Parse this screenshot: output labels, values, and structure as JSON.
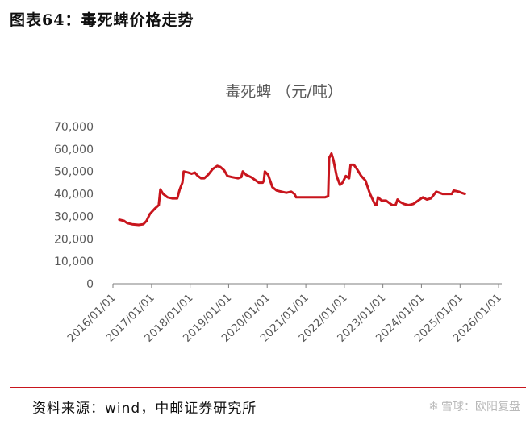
{
  "header": {
    "title": "图表64：毒死蜱价格走势"
  },
  "footer": {
    "source": "资料来源：wind，中邮证券研究所",
    "watermark": "雪球：欧阳复盘",
    "watermark_icon": "snowball-logo-icon"
  },
  "colors": {
    "rule": "#c8151d",
    "series": "#c8151d",
    "text": "#595959",
    "axis": "#7f7f7f"
  },
  "chart_data": {
    "type": "line",
    "title": "毒死蜱 （元/吨）",
    "xlabel": "",
    "ylabel": "",
    "ylim": [
      0,
      70000
    ],
    "yticks": [
      0,
      10000,
      20000,
      30000,
      40000,
      50000,
      60000,
      70000
    ],
    "ytick_labels": [
      "0",
      "10,000",
      "20,000",
      "30,000",
      "40,000",
      "50,000",
      "60,000",
      "70,000"
    ],
    "xlim": [
      "2016-01-01",
      "2026-01-31"
    ],
    "xticks": [
      "2016-01-01",
      "2017-01-01",
      "2018-01-01",
      "2019-01-01",
      "2020-01-01",
      "2021-01-01",
      "2022-01-01",
      "2023-01-01",
      "2024-01-01",
      "2025-01-01",
      "2026-01-01"
    ],
    "xtick_labels": [
      "2016/01/01",
      "2017/01/01",
      "2018/01/01",
      "2019/01/01",
      "2020/01/01",
      "2021/01/01",
      "2022/01/01",
      "2023/01/01",
      "2024/01/01",
      "2025/01/01",
      "2026/01/01"
    ],
    "grid": false,
    "legend": "none",
    "series": [
      {
        "color": "#c8151d",
        "points": [
          [
            "2016-03-01",
            28500
          ],
          [
            "2016-04-15",
            28000
          ],
          [
            "2016-05-15",
            27000
          ],
          [
            "2016-07-01",
            26500
          ],
          [
            "2016-09-01",
            26200
          ],
          [
            "2016-10-15",
            26500
          ],
          [
            "2016-11-15",
            28000
          ],
          [
            "2016-12-15",
            31000
          ],
          [
            "2017-02-01",
            33500
          ],
          [
            "2017-03-10",
            35000
          ],
          [
            "2017-03-25",
            42000
          ],
          [
            "2017-04-20",
            40000
          ],
          [
            "2017-06-01",
            38500
          ],
          [
            "2017-07-15",
            38000
          ],
          [
            "2017-09-01",
            38000
          ],
          [
            "2017-09-25",
            42000
          ],
          [
            "2017-10-20",
            45000
          ],
          [
            "2017-11-01",
            50000
          ],
          [
            "2017-12-15",
            49500
          ],
          [
            "2018-01-15",
            49000
          ],
          [
            "2018-02-15",
            49500
          ],
          [
            "2018-03-15",
            48000
          ],
          [
            "2018-04-15",
            47000
          ],
          [
            "2018-05-15",
            47000
          ],
          [
            "2018-06-20",
            48500
          ],
          [
            "2018-08-01",
            51000
          ],
          [
            "2018-09-15",
            52500
          ],
          [
            "2018-10-15",
            52000
          ],
          [
            "2018-11-20",
            50500
          ],
          [
            "2018-12-20",
            48000
          ],
          [
            "2019-02-01",
            47500
          ],
          [
            "2019-04-01",
            47000
          ],
          [
            "2019-05-01",
            47500
          ],
          [
            "2019-05-15",
            50000
          ],
          [
            "2019-06-15",
            48500
          ],
          [
            "2019-08-01",
            47500
          ],
          [
            "2019-09-15",
            46000
          ],
          [
            "2019-10-15",
            45000
          ],
          [
            "2019-11-20",
            45000
          ],
          [
            "2019-12-01",
            46000
          ],
          [
            "2019-12-10",
            50000
          ],
          [
            "2020-01-10",
            48500
          ],
          [
            "2020-02-20",
            43000
          ],
          [
            "2020-04-01",
            41500
          ],
          [
            "2020-05-15",
            41000
          ],
          [
            "2020-07-01",
            40500
          ],
          [
            "2020-08-15",
            41000
          ],
          [
            "2020-09-15",
            40000
          ],
          [
            "2020-10-01",
            38500
          ],
          [
            "2021-03-01",
            38500
          ],
          [
            "2021-07-01",
            38500
          ],
          [
            "2021-08-01",
            39000
          ],
          [
            "2021-08-10",
            56000
          ],
          [
            "2021-09-01",
            58000
          ],
          [
            "2021-09-20",
            55000
          ],
          [
            "2021-10-20",
            48000
          ],
          [
            "2021-11-20",
            44000
          ],
          [
            "2021-12-15",
            45000
          ],
          [
            "2022-01-15",
            48000
          ],
          [
            "2022-02-15",
            47000
          ],
          [
            "2022-03-01",
            53000
          ],
          [
            "2022-04-01",
            53000
          ],
          [
            "2022-05-01",
            51000
          ],
          [
            "2022-06-10",
            48000
          ],
          [
            "2022-07-20",
            46000
          ],
          [
            "2022-09-01",
            40000
          ],
          [
            "2022-10-01",
            37000
          ],
          [
            "2022-10-20",
            35000
          ],
          [
            "2022-11-01",
            35000
          ],
          [
            "2022-11-15",
            38500
          ],
          [
            "2022-12-20",
            37000
          ],
          [
            "2023-02-01",
            37000
          ],
          [
            "2023-03-01",
            36000
          ],
          [
            "2023-04-01",
            35000
          ],
          [
            "2023-05-01",
            35000
          ],
          [
            "2023-05-20",
            37500
          ],
          [
            "2023-06-10",
            36500
          ],
          [
            "2023-07-20",
            35500
          ],
          [
            "2023-09-01",
            35000
          ],
          [
            "2023-10-15",
            35500
          ],
          [
            "2023-12-01",
            37000
          ],
          [
            "2024-01-15",
            38500
          ],
          [
            "2024-02-20",
            37500
          ],
          [
            "2024-04-01",
            38000
          ],
          [
            "2024-05-20",
            41000
          ],
          [
            "2024-06-20",
            40500
          ],
          [
            "2024-07-20",
            40000
          ],
          [
            "2024-09-01",
            40000
          ],
          [
            "2024-10-15",
            40000
          ],
          [
            "2024-11-01",
            41500
          ],
          [
            "2024-12-20",
            41000
          ],
          [
            "2025-01-15",
            40500
          ],
          [
            "2025-02-15",
            40000
          ]
        ]
      }
    ]
  }
}
